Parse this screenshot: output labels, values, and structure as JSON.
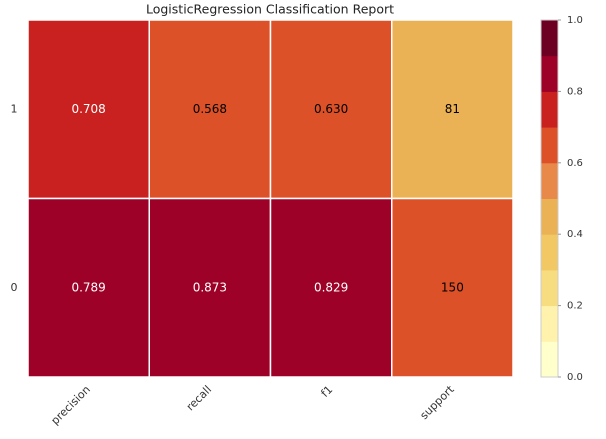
{
  "chart_data": {
    "type": "heatmap",
    "title": "LogisticRegression Classification Report",
    "rows": [
      "1",
      "0"
    ],
    "categories": [
      "precision",
      "recall",
      "f1",
      "support"
    ],
    "values": [
      [
        0.708,
        0.568,
        0.63,
        81
      ],
      [
        0.789,
        0.873,
        0.829,
        150
      ]
    ],
    "value_labels": [
      [
        "0.708",
        "0.568",
        "0.630",
        "81"
      ],
      [
        "0.789",
        "0.873",
        "0.829",
        "150"
      ]
    ],
    "cell_colors": [
      [
        "#c9211f",
        "#dd5129",
        "#dd5129",
        "#ebb255"
      ],
      [
        "#9e0127",
        "#9e0127",
        "#9e0127",
        "#dd5129"
      ]
    ],
    "text_colors": [
      [
        "#ffffff",
        "#000000",
        "#000000",
        "#000000"
      ],
      [
        "#ffffff",
        "#ffffff",
        "#ffffff",
        "#000000"
      ]
    ],
    "colorbar_colors": [
      "#ffffcc",
      "#fff2ac",
      "#f8dd80",
      "#f1c864",
      "#ebb255",
      "#e8894a",
      "#dd5129",
      "#c9211f",
      "#9e0127",
      "#6d0022"
    ],
    "zlim": [
      0,
      1
    ],
    "zticks": [
      {
        "value": 0,
        "label": "0.0"
      },
      0.2,
      0.4,
      0.6,
      0.8,
      {
        "value": 1,
        "label": "1.0"
      }
    ]
  }
}
